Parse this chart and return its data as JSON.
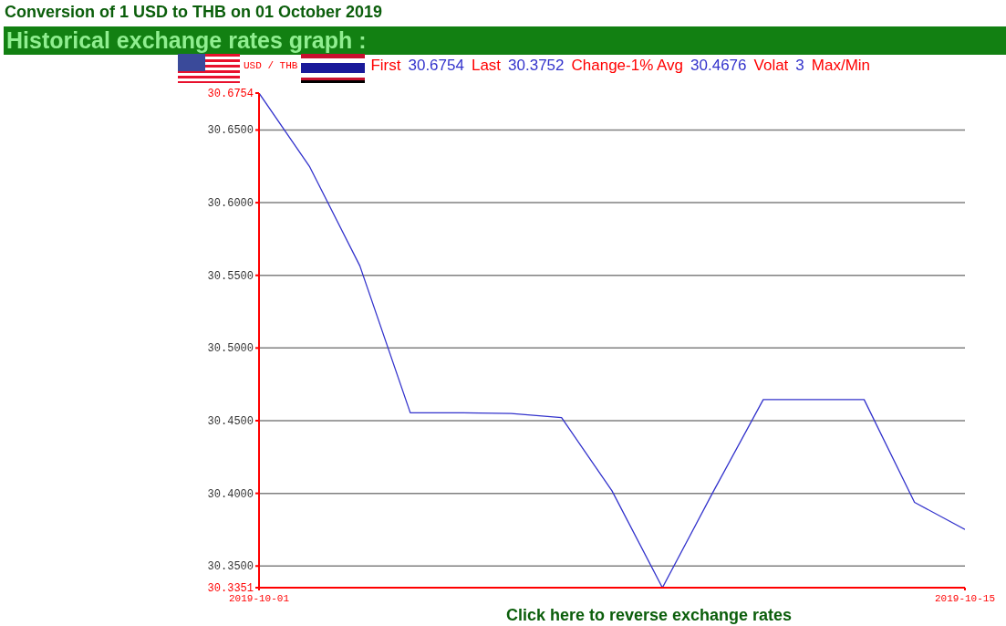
{
  "chart_data": {
    "type": "line",
    "title": "Conversion of 1 USD to THB on 01 October 2019",
    "subtitle": "Historical exchange rates graph :",
    "annotations": [
      "USD / THB",
      "First",
      "30.6754",
      "Last",
      "30.3752",
      "Change-1% Avg",
      "30.4676",
      "Volat",
      "3",
      "Max/Min",
      "Click here to reverse exchange rates"
    ],
    "x": [
      "2019-10-01",
      "2019-10-02",
      "2019-10-03",
      "2019-10-04",
      "2019-10-05",
      "2019-10-06",
      "2019-10-07",
      "2019-10-08",
      "2019-10-09",
      "2019-10-10",
      "2019-10-11",
      "2019-10-12",
      "2019-10-13",
      "2019-10-14",
      "2019-10-15"
    ],
    "series": [
      {
        "color": "#3333cc",
        "values": [
          30.6754,
          30.625,
          30.5565,
          30.4554,
          30.4554,
          30.455,
          30.4521,
          30.4017,
          30.3351,
          30.4006,
          30.4645,
          30.4645,
          30.4645,
          30.3938,
          30.3752
        ]
      }
    ],
    "xlim": [
      "2019-10-01",
      "2019-10-15"
    ],
    "xticks": [
      "2019-10-01",
      "2019-10-15"
    ],
    "ylim": [
      30.3351,
      30.6754
    ],
    "yticks": [
      {
        "value": 30.3351,
        "label": "30.3351"
      },
      {
        "value": 30.35,
        "label": "30.3500"
      },
      {
        "value": 30.4,
        "label": "30.4000"
      },
      {
        "value": 30.45,
        "label": "30.4500"
      },
      {
        "value": 30.5,
        "label": "30.5000"
      },
      {
        "value": 30.55,
        "label": "30.5500"
      },
      {
        "value": 30.6,
        "label": "30.6000"
      },
      {
        "value": 30.65,
        "label": "30.6500"
      },
      {
        "value": 30.6754,
        "label": "30.6754"
      }
    ],
    "grid": "y",
    "legend": false,
    "marker": "none",
    "line_style": "solid"
  }
}
